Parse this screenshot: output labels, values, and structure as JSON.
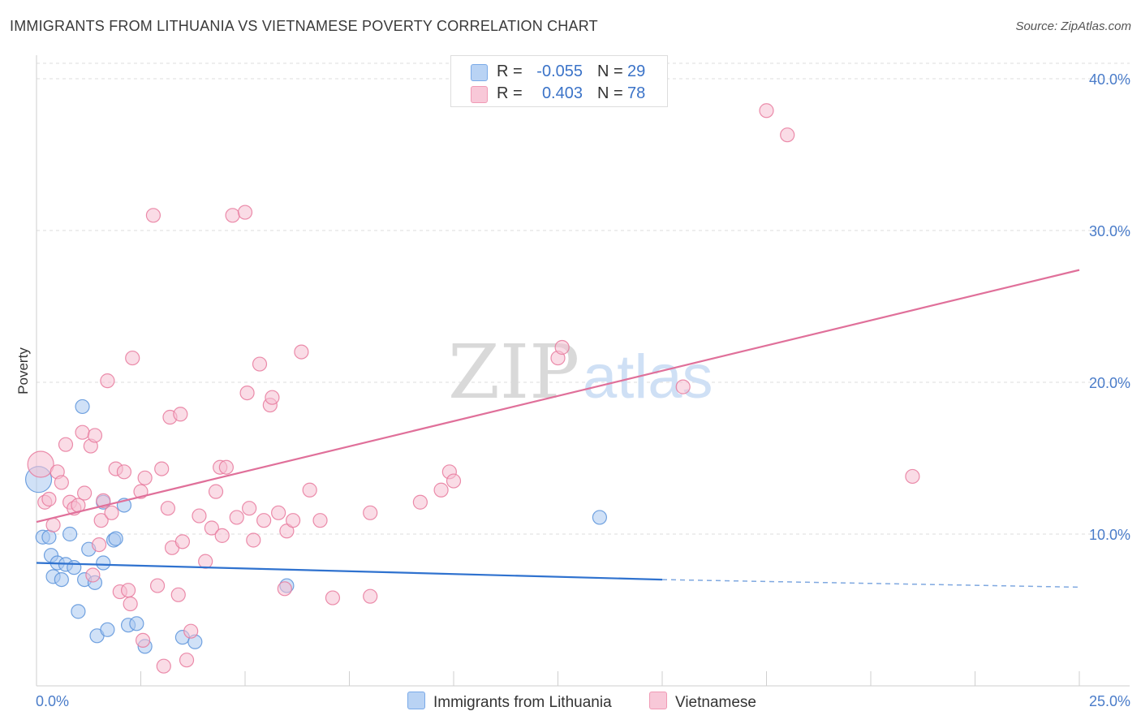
{
  "header": {
    "title": "IMMIGRANTS FROM LITHUANIA VS VIETNAMESE POVERTY CORRELATION CHART",
    "source": "Source: ZipAtlas.com"
  },
  "watermark": {
    "zip": "ZIP",
    "atlas": "atlas"
  },
  "legend": {
    "series1": {
      "r_label": "R =",
      "r_value": "-0.055",
      "n_label": "N =",
      "n_value": "29",
      "color": "#7aaae8",
      "fill": "#b9d3f4"
    },
    "series2": {
      "r_label": "R =",
      "r_value": "0.403",
      "n_label": "N =",
      "n_value": "78",
      "color": "#f09ab5",
      "fill": "#f8c8d8"
    }
  },
  "bottom_legend": {
    "series1_label": "Immigrants from Lithuania",
    "series2_label": "Vietnamese"
  },
  "chart_data": {
    "type": "scatter",
    "title": "IMMIGRANTS FROM LITHUANIA VS VIETNAMESE POVERTY CORRELATION CHART",
    "xlabel": "",
    "ylabel": "Poverty",
    "xlim": [
      0,
      25
    ],
    "ylim": [
      0,
      40
    ],
    "x_tick_labels": [
      "0.0%",
      "25.0%"
    ],
    "y_tick_labels": [
      "10.0%",
      "20.0%",
      "30.0%",
      "40.0%"
    ],
    "y_ticks": [
      10,
      20,
      30,
      40
    ],
    "series": [
      {
        "name": "Immigrants from Lithuania",
        "color": "#5b93db",
        "fill": "#a9c8f0",
        "trend": {
          "x": [
            0,
            15,
            25
          ],
          "y": [
            8.1,
            7.0,
            6.5
          ],
          "solid_until": 15
        },
        "points": [
          [
            0.05,
            13.6
          ],
          [
            0.15,
            9.8
          ],
          [
            0.3,
            9.8
          ],
          [
            0.35,
            8.6
          ],
          [
            0.4,
            7.2
          ],
          [
            0.5,
            8.1
          ],
          [
            0.6,
            7.0
          ],
          [
            0.7,
            8.0
          ],
          [
            0.8,
            10.0
          ],
          [
            0.9,
            7.8
          ],
          [
            1.0,
            4.9
          ],
          [
            1.1,
            18.4
          ],
          [
            1.15,
            7.0
          ],
          [
            1.25,
            9.0
          ],
          [
            1.4,
            6.8
          ],
          [
            1.45,
            3.3
          ],
          [
            1.6,
            8.1
          ],
          [
            1.7,
            3.7
          ],
          [
            1.85,
            9.6
          ],
          [
            1.9,
            9.7
          ],
          [
            2.1,
            11.9
          ],
          [
            2.2,
            4.0
          ],
          [
            2.4,
            4.1
          ],
          [
            2.6,
            2.6
          ],
          [
            3.5,
            3.2
          ],
          [
            3.8,
            2.9
          ],
          [
            6.0,
            6.6
          ],
          [
            13.5,
            11.1
          ],
          [
            1.6,
            12.1
          ]
        ]
      },
      {
        "name": "Vietnamese",
        "color": "#e8799c",
        "fill": "#f6c0d2",
        "trend": {
          "x": [
            0,
            25
          ],
          "y": [
            10.8,
            27.4
          ]
        },
        "points": [
          [
            0.1,
            14.6
          ],
          [
            0.2,
            12.1
          ],
          [
            0.3,
            12.3
          ],
          [
            0.4,
            10.6
          ],
          [
            0.5,
            14.1
          ],
          [
            0.6,
            13.4
          ],
          [
            0.7,
            15.9
          ],
          [
            0.8,
            12.1
          ],
          [
            0.9,
            11.7
          ],
          [
            1.0,
            11.9
          ],
          [
            1.1,
            16.7
          ],
          [
            1.15,
            12.7
          ],
          [
            1.3,
            15.8
          ],
          [
            1.35,
            7.3
          ],
          [
            1.4,
            16.5
          ],
          [
            1.5,
            9.3
          ],
          [
            1.55,
            10.9
          ],
          [
            1.6,
            12.2
          ],
          [
            1.7,
            20.1
          ],
          [
            1.8,
            11.4
          ],
          [
            1.9,
            14.3
          ],
          [
            2.0,
            6.2
          ],
          [
            2.1,
            14.1
          ],
          [
            2.2,
            6.3
          ],
          [
            2.25,
            5.4
          ],
          [
            2.3,
            21.6
          ],
          [
            2.5,
            12.8
          ],
          [
            2.55,
            3.0
          ],
          [
            2.6,
            13.7
          ],
          [
            2.8,
            31.0
          ],
          [
            2.9,
            6.6
          ],
          [
            3.0,
            14.3
          ],
          [
            3.05,
            1.3
          ],
          [
            3.15,
            11.7
          ],
          [
            3.2,
            17.7
          ],
          [
            3.25,
            9.1
          ],
          [
            3.4,
            6.0
          ],
          [
            3.45,
            17.9
          ],
          [
            3.5,
            9.5
          ],
          [
            3.6,
            1.7
          ],
          [
            3.7,
            3.6
          ],
          [
            3.9,
            11.2
          ],
          [
            4.05,
            8.2
          ],
          [
            4.2,
            10.4
          ],
          [
            4.3,
            12.8
          ],
          [
            4.4,
            14.4
          ],
          [
            4.45,
            9.9
          ],
          [
            4.55,
            14.4
          ],
          [
            4.7,
            31.0
          ],
          [
            4.8,
            11.1
          ],
          [
            5.0,
            31.2
          ],
          [
            5.05,
            19.3
          ],
          [
            5.1,
            11.7
          ],
          [
            5.2,
            9.6
          ],
          [
            5.35,
            21.2
          ],
          [
            5.45,
            10.9
          ],
          [
            5.6,
            18.5
          ],
          [
            5.65,
            19.0
          ],
          [
            5.8,
            11.4
          ],
          [
            5.95,
            6.4
          ],
          [
            6.0,
            10.2
          ],
          [
            6.15,
            10.9
          ],
          [
            6.35,
            22.0
          ],
          [
            6.55,
            12.9
          ],
          [
            6.8,
            10.9
          ],
          [
            7.1,
            5.8
          ],
          [
            8.0,
            11.4
          ],
          [
            8.0,
            5.9
          ],
          [
            9.2,
            12.1
          ],
          [
            9.7,
            12.9
          ],
          [
            9.9,
            14.1
          ],
          [
            10.0,
            13.5
          ],
          [
            12.5,
            21.6
          ],
          [
            12.6,
            22.3
          ],
          [
            15.5,
            19.7
          ],
          [
            17.5,
            37.9
          ],
          [
            18.0,
            36.3
          ],
          [
            21.0,
            13.8
          ]
        ]
      }
    ],
    "legend_position": "top-center",
    "grid": true
  }
}
